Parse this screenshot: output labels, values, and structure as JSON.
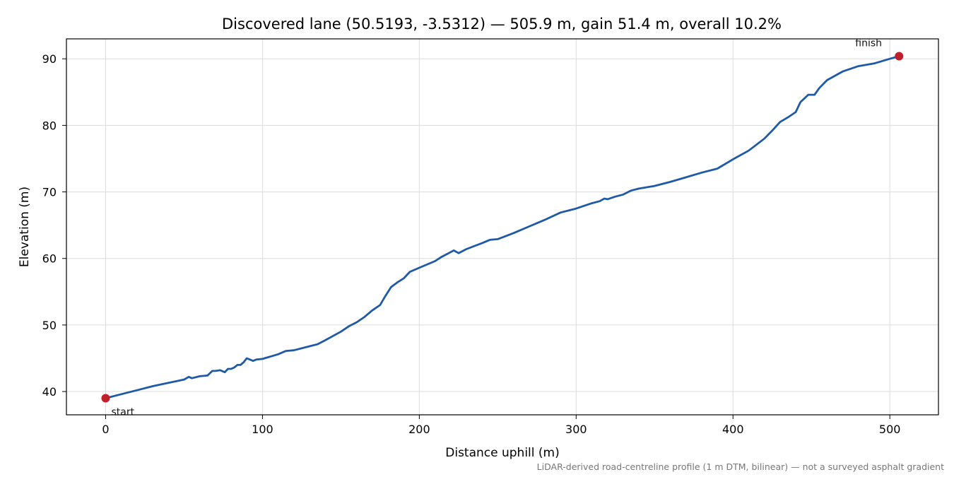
{
  "chart_data": {
    "type": "line",
    "title": "Discovered lane (50.5193, -3.5312) — 505.9 m, gain 51.4 m, overall 10.2%",
    "xlabel": "Distance uphill (m)",
    "ylabel": "Elevation (m)",
    "xlim": [
      -25,
      531
    ],
    "ylim": [
      36.5,
      93
    ],
    "xticks": [
      0,
      100,
      200,
      300,
      400,
      500
    ],
    "yticks": [
      40,
      50,
      60,
      70,
      80,
      90
    ],
    "grid": true,
    "footnote": "LiDAR-derived road-centreline profile (1 m DTM, bilinear) — not a surveyed asphalt gradient",
    "series": [
      {
        "color": "#1f5aa6",
        "x": [
          0,
          10,
          20,
          30,
          40,
          50,
          53,
          55,
          60,
          65,
          68,
          70,
          73,
          76,
          78,
          80,
          82,
          84,
          86,
          88,
          90,
          92,
          94,
          96,
          100,
          110,
          115,
          120,
          130,
          135,
          140,
          150,
          155,
          160,
          165,
          170,
          175,
          178,
          182,
          186,
          190,
          194,
          200,
          210,
          214,
          218,
          222,
          225,
          230,
          240,
          245,
          250,
          260,
          270,
          280,
          290,
          300,
          310,
          315,
          318,
          320,
          325,
          330,
          335,
          340,
          350,
          360,
          370,
          380,
          390,
          400,
          410,
          420,
          425,
          430,
          435,
          440,
          443,
          448,
          452,
          455,
          460,
          470,
          480,
          490,
          500,
          505.9
        ],
        "y": [
          39.0,
          39.6,
          40.2,
          40.8,
          41.3,
          41.8,
          42.2,
          42.0,
          42.3,
          42.4,
          43.1,
          43.1,
          43.2,
          42.9,
          43.4,
          43.4,
          43.6,
          44.0,
          44.0,
          44.4,
          45.0,
          44.8,
          44.6,
          44.8,
          44.9,
          45.6,
          46.1,
          46.2,
          46.8,
          47.1,
          47.7,
          49.0,
          49.8,
          50.4,
          51.2,
          52.2,
          53.0,
          54.2,
          55.7,
          56.4,
          57.0,
          58.0,
          58.6,
          59.6,
          60.2,
          60.7,
          61.2,
          60.8,
          61.4,
          62.3,
          62.8,
          62.9,
          63.8,
          64.8,
          65.8,
          66.9,
          67.5,
          68.3,
          68.6,
          69.0,
          68.9,
          69.3,
          69.6,
          70.2,
          70.5,
          70.9,
          71.5,
          72.2,
          72.9,
          73.5,
          74.9,
          76.2,
          78.0,
          79.2,
          80.5,
          81.2,
          82.0,
          83.5,
          84.6,
          84.6,
          85.6,
          86.8,
          88.1,
          88.9,
          89.3,
          90.0,
          90.4
        ]
      }
    ],
    "annotations": [
      {
        "text": "start",
        "x": 0,
        "y": 39.0,
        "color": "#c0202a"
      },
      {
        "text": "finish",
        "x": 505.9,
        "y": 90.4,
        "color": "#c0202a"
      }
    ]
  }
}
